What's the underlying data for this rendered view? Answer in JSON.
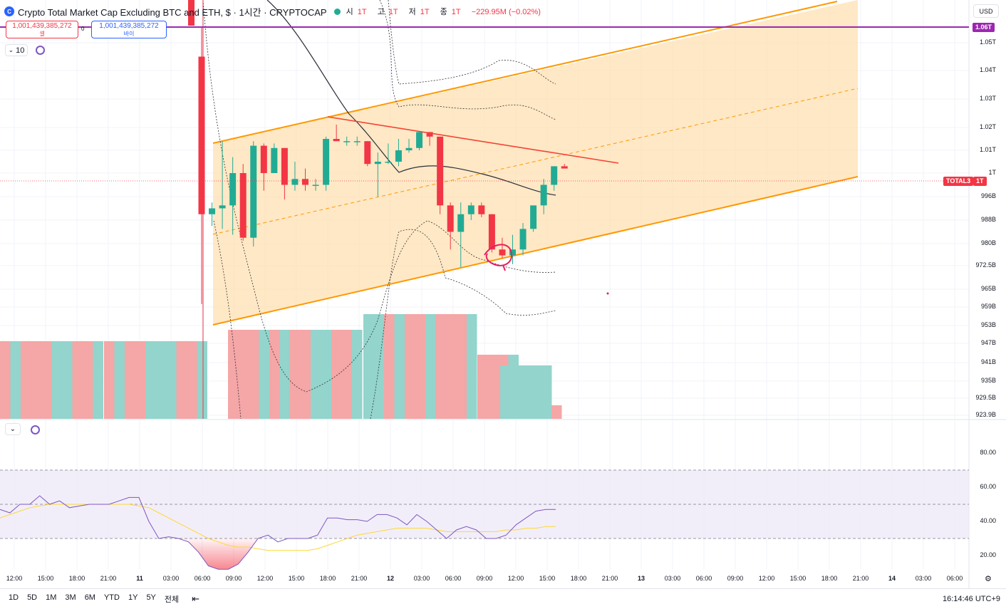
{
  "header": {
    "symbol_icon": "crypto-cap-icon",
    "symbol_icon_text": "C",
    "title": "Crypto Total Market Cap Excluding BTC and ETH, $ · 1시간 · CRYPTOCAP",
    "market_status": "open",
    "ohlc": {
      "open_label": "시",
      "open": "1T",
      "high_label": "고",
      "high": "1T",
      "low_label": "저",
      "low": "1T",
      "close_label": "종",
      "close": "1T",
      "change": "−229.95M (−0.02%)"
    }
  },
  "trade": {
    "sell_price": "1,001,439,385,272",
    "sell_label": "셀",
    "spread": "0",
    "buy_price": "1,001,439,385,272",
    "buy_label": "바이"
  },
  "indicator_controls": {
    "interval_value": "10",
    "collapse_icon": "chevron-down-icon",
    "sync_icon": "sync-icon"
  },
  "currency": "USD",
  "price_axis": {
    "labels": [
      "1.05T",
      "1.04T",
      "1.03T",
      "1.02T",
      "1.01T",
      "1T",
      "996B",
      "988B",
      "980B",
      "972.5B",
      "965B",
      "959B",
      "953B",
      "947B",
      "941B",
      "935B",
      "929.5B",
      "923.9B"
    ],
    "tags": [
      {
        "text": "1.06T",
        "color": "#9c27b0"
      },
      {
        "symbol": "TOTAL3",
        "text": "1T",
        "color": "#f23645"
      }
    ]
  },
  "rsi_axis": {
    "labels": [
      "80.00",
      "60.00",
      "40.00",
      "20.00"
    ],
    "upper_band": 70,
    "lower_band": 30,
    "mid_band": 50
  },
  "time_axis": {
    "labels": [
      {
        "t": "12:00",
        "bold": false
      },
      {
        "t": "15:00",
        "bold": false
      },
      {
        "t": "18:00",
        "bold": false
      },
      {
        "t": "21:00",
        "bold": false
      },
      {
        "t": "11",
        "bold": true
      },
      {
        "t": "03:00",
        "bold": false
      },
      {
        "t": "06:00",
        "bold": false
      },
      {
        "t": "09:00",
        "bold": false
      },
      {
        "t": "12:00",
        "bold": false
      },
      {
        "t": "15:00",
        "bold": false
      },
      {
        "t": "18:00",
        "bold": false
      },
      {
        "t": "21:00",
        "bold": false
      },
      {
        "t": "12",
        "bold": true
      },
      {
        "t": "03:00",
        "bold": false
      },
      {
        "t": "06:00",
        "bold": false
      },
      {
        "t": "09:00",
        "bold": false
      },
      {
        "t": "12:00",
        "bold": false
      },
      {
        "t": "15:00",
        "bold": false
      },
      {
        "t": "18:00",
        "bold": false
      },
      {
        "t": "21:00",
        "bold": false
      },
      {
        "t": "13",
        "bold": true
      },
      {
        "t": "03:00",
        "bold": false
      },
      {
        "t": "06:00",
        "bold": false
      },
      {
        "t": "09:00",
        "bold": false
      },
      {
        "t": "12:00",
        "bold": false
      },
      {
        "t": "15:00",
        "bold": false
      },
      {
        "t": "18:00",
        "bold": false
      },
      {
        "t": "21:00",
        "bold": false
      },
      {
        "t": "14",
        "bold": true
      },
      {
        "t": "03:00",
        "bold": false
      },
      {
        "t": "06:00",
        "bold": false
      }
    ],
    "settings_icon": "gear-icon"
  },
  "ranges": [
    "1D",
    "5D",
    "1M",
    "3M",
    "6M",
    "YTD",
    "1Y",
    "5Y",
    "전체"
  ],
  "compare_icon": "calendar-range-icon",
  "clock": "16:14:46 UTC+9",
  "colors": {
    "up": "#22ab94",
    "down": "#f23645",
    "channel": "#ff9800",
    "channel_fill": "#ffe0b2",
    "resistance": "#f44336",
    "hline": "#9c27b0",
    "ma": "#2a2e39",
    "rsi": "#7e57c2",
    "rsi_ma": "#fdd835",
    "rsi_band_fill": "#ede7f6"
  },
  "chart_data": [
    {
      "type": "candlestick",
      "title": "Crypto Total Market Cap Excluding BTC and ETH",
      "unit": "USD (B)",
      "candles": [
        {
          "o": 1045,
          "h": 1060,
          "l": 960,
          "c": 990
        },
        {
          "o": 990,
          "h": 994,
          "l": 986,
          "c": 992
        },
        {
          "o": 992,
          "h": 1014,
          "l": 985,
          "c": 993
        },
        {
          "o": 993,
          "h": 1007,
          "l": 983,
          "c": 1000
        },
        {
          "o": 1000,
          "h": 1004,
          "l": 981,
          "c": 982
        },
        {
          "o": 982,
          "h": 1014,
          "l": 979,
          "c": 1012
        },
        {
          "o": 1012,
          "h": 1013,
          "l": 997,
          "c": 1000
        },
        {
          "o": 1000,
          "h": 1013,
          "l": 1000,
          "c": 1011
        },
        {
          "o": 1011,
          "h": 1011,
          "l": 995,
          "c": 998
        },
        {
          "o": 998,
          "h": 1005,
          "l": 997,
          "c": 999
        },
        {
          "o": 999,
          "h": 1002,
          "l": 997,
          "c": 998
        },
        {
          "o": 998,
          "h": 999,
          "l": 997,
          "c": 998
        },
        {
          "o": 998,
          "h": 1016,
          "l": 997,
          "c": 1015
        },
        {
          "o": 1015,
          "h": 1021,
          "l": 1014,
          "c": 1014
        },
        {
          "o": 1014,
          "h": 1016,
          "l": 1012,
          "c": 1014
        },
        {
          "o": 1014,
          "h": 1016,
          "l": 1012,
          "c": 1014
        },
        {
          "o": 1014,
          "h": 1014,
          "l": 1003,
          "c": 1004
        },
        {
          "o": 1004,
          "h": 1009,
          "l": 996,
          "c": 1005
        },
        {
          "o": 1005,
          "h": 1013,
          "l": 1004,
          "c": 1005
        },
        {
          "o": 1005,
          "h": 1015,
          "l": 1003,
          "c": 1010
        },
        {
          "o": 1010,
          "h": 1015,
          "l": 1009,
          "c": 1011
        },
        {
          "o": 1011,
          "h": 1018,
          "l": 1010,
          "c": 1018
        },
        {
          "o": 1018,
          "h": 1018,
          "l": 1012,
          "c": 1016
        },
        {
          "o": 1016,
          "h": 1016,
          "l": 990,
          "c": 993
        },
        {
          "o": 993,
          "h": 994,
          "l": 978,
          "c": 984
        },
        {
          "o": 984,
          "h": 994,
          "l": 972,
          "c": 990
        },
        {
          "o": 990,
          "h": 994,
          "l": 988,
          "c": 993
        },
        {
          "o": 993,
          "h": 994,
          "l": 989,
          "c": 990
        },
        {
          "o": 990,
          "h": 990,
          "l": 977,
          "c": 978
        },
        {
          "o": 978,
          "h": 982,
          "l": 975,
          "c": 976
        },
        {
          "o": 976,
          "h": 983,
          "l": 973,
          "c": 978
        },
        {
          "o": 978,
          "h": 987,
          "l": 976,
          "c": 985
        },
        {
          "o": 985,
          "h": 993,
          "l": 984,
          "c": 993
        },
        {
          "o": 993,
          "h": 999,
          "l": 990,
          "c": 998
        },
        {
          "o": 998,
          "h": 1003,
          "l": 997,
          "c": 1003
        },
        {
          "o": 1003,
          "h": 1004,
          "l": 1002,
          "c": 1002
        }
      ],
      "horizontal_line": 1060,
      "current_price": 1001.4,
      "ylim": [
        923.9,
        1068
      ]
    },
    {
      "type": "bar",
      "title": "Volume profile (session)",
      "unit": "relative",
      "rows": [
        {
          "count": 10,
          "h": 0.94,
          "up": [
            0,
            1,
            0,
            0,
            0,
            1,
            1,
            0,
            0,
            1
          ]
        },
        {
          "count": 10,
          "h": 0.94,
          "up": [
            0,
            1,
            0,
            0,
            1,
            1,
            1,
            0,
            0,
            1
          ]
        },
        {
          "count": 13,
          "h": 1.02,
          "up": [
            0,
            0,
            0,
            1,
            0,
            1,
            0,
            0,
            1,
            1,
            0,
            0,
            1
          ]
        },
        {
          "count": 11,
          "h": 1.16,
          "up": [
            1,
            1,
            0,
            1,
            0,
            0,
            1,
            0,
            0,
            0,
            1
          ]
        },
        {
          "count": 4,
          "h": 0.84,
          "up": [
            0,
            0,
            0,
            1
          ]
        },
        {
          "count": 5,
          "h": 0.62,
          "up": [
            1,
            1,
            1,
            1,
            1
          ]
        },
        {
          "count": 1,
          "h": 0.16,
          "up": [
            0
          ]
        }
      ]
    },
    {
      "type": "line",
      "title": "RSI",
      "ylim": [
        10,
        85
      ],
      "series": [
        {
          "name": "RSI",
          "values": [
            47,
            45,
            50,
            50,
            55,
            50,
            52,
            48,
            49,
            50,
            50,
            50,
            52,
            54,
            54,
            40,
            30,
            31,
            30,
            28,
            22,
            14,
            12,
            12,
            15,
            22,
            30,
            32,
            28,
            30,
            30,
            30,
            32,
            42,
            42,
            41,
            41,
            40,
            44,
            44,
            42,
            38,
            44,
            40,
            35,
            30,
            35,
            37,
            35,
            30,
            30,
            32,
            38,
            42,
            46,
            47,
            47
          ]
        },
        {
          "name": "MA",
          "values": [
            42,
            44,
            46,
            48,
            49,
            50,
            50,
            50,
            50,
            50,
            50,
            50,
            50,
            50,
            49,
            48,
            45,
            42,
            39,
            36,
            33,
            30,
            28,
            26,
            25,
            25,
            24,
            23,
            23,
            23,
            23,
            23,
            24,
            26,
            28,
            30,
            32,
            33,
            34,
            35,
            36,
            36,
            36,
            36,
            35,
            34,
            34,
            34,
            34,
            34,
            34,
            35,
            35,
            36,
            36,
            37,
            37
          ]
        }
      ]
    }
  ]
}
